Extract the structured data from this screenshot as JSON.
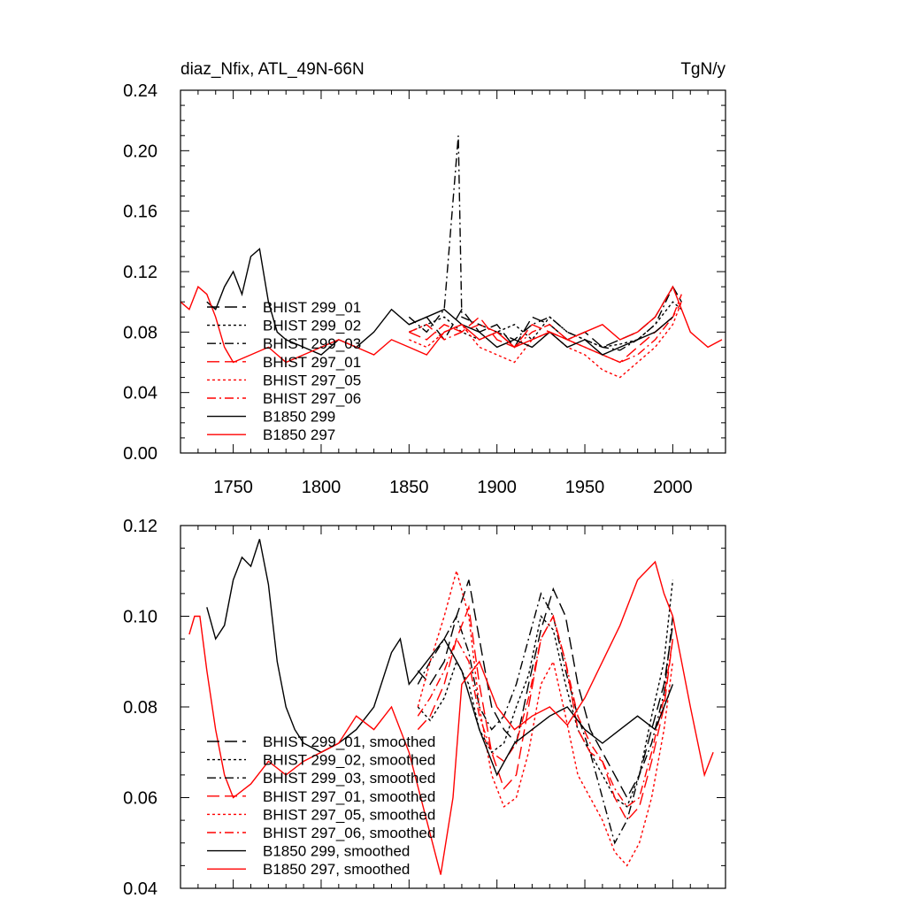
{
  "chart_data": [
    {
      "type": "line",
      "title": "diaz_Nfix, ATL_49N-66N",
      "units": "TgN/y",
      "xlim": [
        1720,
        2030
      ],
      "ylim": [
        0.0,
        0.24
      ],
      "xticks": [
        1750,
        1800,
        1850,
        1900,
        1950,
        2000
      ],
      "xtick_labels": [
        "1750",
        "1800",
        "1850",
        "1900",
        "1950",
        "2000"
      ],
      "yticks": [
        0.0,
        0.04,
        0.08,
        0.12,
        0.16,
        0.2,
        0.24
      ],
      "ytick_labels": [
        "0.00",
        "0.04",
        "0.08",
        "0.12",
        "0.16",
        "0.20",
        "0.24"
      ],
      "legend_position": "lower-left",
      "series": [
        {
          "name": "BHIST 299_01",
          "color": "#000000",
          "dash": "longdash",
          "x": [
            1850,
            1860,
            1870,
            1880,
            1890,
            1900,
            1910,
            1920,
            1930,
            1940,
            1950,
            1960,
            1970,
            1980,
            1990,
            2000,
            2005
          ],
          "y": [
            0.085,
            0.09,
            0.075,
            0.095,
            0.08,
            0.085,
            0.07,
            0.09,
            0.085,
            0.075,
            0.08,
            0.07,
            0.075,
            0.08,
            0.09,
            0.11,
            0.1
          ]
        },
        {
          "name": "BHIST 299_02",
          "color": "#000000",
          "dash": "dot",
          "x": [
            1850,
            1860,
            1870,
            1880,
            1890,
            1900,
            1910,
            1920,
            1930,
            1940,
            1950,
            1960,
            1970,
            1980,
            1990,
            2000,
            2005
          ],
          "y": [
            0.08,
            0.085,
            0.09,
            0.08,
            0.075,
            0.08,
            0.085,
            0.075,
            0.09,
            0.08,
            0.075,
            0.07,
            0.072,
            0.075,
            0.085,
            0.1,
            0.095
          ]
        },
        {
          "name": "BHIST 299_03",
          "color": "#000000",
          "dash": "dashdot",
          "x": [
            1850,
            1860,
            1870,
            1878,
            1880,
            1890,
            1900,
            1910,
            1920,
            1930,
            1940,
            1950,
            1960,
            1970,
            1980,
            1990,
            2000,
            2005
          ],
          "y": [
            0.09,
            0.08,
            0.095,
            0.21,
            0.09,
            0.085,
            0.08,
            0.075,
            0.085,
            0.09,
            0.08,
            0.075,
            0.07,
            0.068,
            0.075,
            0.085,
            0.11,
            0.1
          ]
        },
        {
          "name": "BHIST 297_01",
          "color": "#ff0000",
          "dash": "longdash",
          "x": [
            1850,
            1860,
            1870,
            1880,
            1890,
            1900,
            1910,
            1920,
            1930,
            1940,
            1950,
            1960,
            1970,
            1980,
            1990,
            2000,
            2005
          ],
          "y": [
            0.08,
            0.075,
            0.085,
            0.08,
            0.09,
            0.075,
            0.07,
            0.085,
            0.08,
            0.075,
            0.07,
            0.065,
            0.06,
            0.07,
            0.08,
            0.09,
            0.1
          ]
        },
        {
          "name": "BHIST 297_05",
          "color": "#ff0000",
          "dash": "dot",
          "x": [
            1850,
            1860,
            1870,
            1880,
            1890,
            1900,
            1910,
            1920,
            1930,
            1940,
            1950,
            1960,
            1970,
            1980,
            1990,
            2000,
            2005
          ],
          "y": [
            0.075,
            0.07,
            0.08,
            0.085,
            0.07,
            0.065,
            0.06,
            0.075,
            0.08,
            0.07,
            0.065,
            0.055,
            0.05,
            0.06,
            0.07,
            0.085,
            0.1
          ]
        },
        {
          "name": "BHIST 297_06",
          "color": "#ff0000",
          "dash": "dashdot",
          "x": [
            1850,
            1860,
            1870,
            1880,
            1890,
            1900,
            1910,
            1920,
            1930,
            1940,
            1950,
            1960,
            1970,
            1980,
            1990,
            2000,
            2005
          ],
          "y": [
            0.08,
            0.085,
            0.075,
            0.08,
            0.085,
            0.08,
            0.07,
            0.08,
            0.085,
            0.075,
            0.07,
            0.065,
            0.06,
            0.065,
            0.075,
            0.09,
            0.105
          ]
        },
        {
          "name": "B1850 299",
          "color": "#000000",
          "dash": "solid",
          "x": [
            1735,
            1740,
            1745,
            1750,
            1755,
            1760,
            1765,
            1770,
            1775,
            1780,
            1790,
            1800,
            1810,
            1820,
            1830,
            1840,
            1850,
            1860,
            1870,
            1880,
            1890,
            1900,
            1910,
            1920,
            1930,
            1940,
            1950,
            1960,
            1970,
            1980,
            1990,
            2000
          ],
          "y": [
            0.1,
            0.095,
            0.11,
            0.12,
            0.105,
            0.13,
            0.135,
            0.1,
            0.08,
            0.075,
            0.07,
            0.065,
            0.075,
            0.07,
            0.08,
            0.095,
            0.085,
            0.09,
            0.095,
            0.085,
            0.08,
            0.07,
            0.075,
            0.07,
            0.08,
            0.07,
            0.075,
            0.065,
            0.07,
            0.075,
            0.08,
            0.09
          ]
        },
        {
          "name": "B1850 297",
          "color": "#ff0000",
          "dash": "solid",
          "x": [
            1720,
            1725,
            1730,
            1735,
            1740,
            1745,
            1750,
            1760,
            1770,
            1780,
            1790,
            1800,
            1810,
            1820,
            1830,
            1840,
            1850,
            1860,
            1870,
            1880,
            1890,
            1900,
            1910,
            1920,
            1930,
            1940,
            1950,
            1960,
            1970,
            1980,
            1990,
            2000,
            2010,
            2020,
            2028
          ],
          "y": [
            0.1,
            0.095,
            0.11,
            0.105,
            0.09,
            0.07,
            0.06,
            0.065,
            0.07,
            0.06,
            0.065,
            0.07,
            0.075,
            0.07,
            0.065,
            0.075,
            0.07,
            0.065,
            0.08,
            0.085,
            0.075,
            0.08,
            0.07,
            0.075,
            0.08,
            0.075,
            0.08,
            0.085,
            0.075,
            0.08,
            0.09,
            0.11,
            0.08,
            0.07,
            0.075
          ]
        }
      ]
    },
    {
      "type": "line",
      "title": "",
      "xlim": [
        1720,
        2030
      ],
      "ylim": [
        0.04,
        0.12
      ],
      "xticks": [
        1750,
        1800,
        1850,
        1900,
        1950,
        2000
      ],
      "yticks": [
        0.04,
        0.06,
        0.08,
        0.1,
        0.12
      ],
      "ytick_labels": [
        "0.04",
        "0.06",
        "0.08",
        "0.10",
        "0.12"
      ],
      "legend_position": "lower-left",
      "series": [
        {
          "name": "BHIST 299_01, smoothed",
          "color": "#000000",
          "dash": "longdash",
          "x": [
            1855,
            1862,
            1870,
            1877,
            1884,
            1890,
            1897,
            1904,
            1911,
            1918,
            1925,
            1932,
            1939,
            1946,
            1953,
            1960,
            1967,
            1974,
            1981,
            1988,
            1995,
            2000
          ],
          "y": [
            0.088,
            0.085,
            0.09,
            0.1,
            0.108,
            0.095,
            0.08,
            0.075,
            0.072,
            0.085,
            0.097,
            0.106,
            0.1,
            0.085,
            0.075,
            0.07,
            0.065,
            0.06,
            0.065,
            0.075,
            0.085,
            0.098
          ]
        },
        {
          "name": "BHIST 299_02, smoothed",
          "color": "#000000",
          "dash": "dot",
          "x": [
            1855,
            1862,
            1870,
            1877,
            1884,
            1890,
            1897,
            1904,
            1911,
            1918,
            1925,
            1932,
            1939,
            1946,
            1953,
            1960,
            1967,
            1974,
            1981,
            1988,
            1995,
            2000
          ],
          "y": [
            0.08,
            0.077,
            0.082,
            0.09,
            0.085,
            0.075,
            0.07,
            0.072,
            0.08,
            0.087,
            0.1,
            0.097,
            0.085,
            0.075,
            0.07,
            0.065,
            0.06,
            0.058,
            0.065,
            0.078,
            0.09,
            0.108
          ]
        },
        {
          "name": "BHIST 299_03, smoothed",
          "color": "#000000",
          "dash": "dashdot",
          "x": [
            1855,
            1862,
            1870,
            1877,
            1884,
            1890,
            1897,
            1904,
            1911,
            1918,
            1925,
            1932,
            1939,
            1946,
            1953,
            1960,
            1967,
            1974,
            1981,
            1988,
            1995,
            2000
          ],
          "y": [
            0.085,
            0.09,
            0.095,
            0.1,
            0.092,
            0.08,
            0.075,
            0.078,
            0.085,
            0.095,
            0.105,
            0.1,
            0.088,
            0.078,
            0.07,
            0.06,
            0.05,
            0.055,
            0.065,
            0.072,
            0.083,
            0.1
          ]
        },
        {
          "name": "BHIST 297_01, smoothed",
          "color": "#ff0000",
          "dash": "longdash",
          "x": [
            1855,
            1862,
            1870,
            1877,
            1884,
            1890,
            1897,
            1904,
            1911,
            1918,
            1925,
            1932,
            1939,
            1946,
            1953,
            1960,
            1967,
            1974,
            1981,
            1988,
            1995,
            2000
          ],
          "y": [
            0.075,
            0.078,
            0.085,
            0.095,
            0.102,
            0.085,
            0.07,
            0.062,
            0.065,
            0.08,
            0.095,
            0.1,
            0.09,
            0.075,
            0.07,
            0.068,
            0.06,
            0.055,
            0.058,
            0.068,
            0.08,
            0.095
          ]
        },
        {
          "name": "BHIST 297_05, smoothed",
          "color": "#ff0000",
          "dash": "dot",
          "x": [
            1855,
            1862,
            1870,
            1877,
            1884,
            1890,
            1897,
            1904,
            1911,
            1918,
            1925,
            1932,
            1939,
            1946,
            1953,
            1960,
            1967,
            1974,
            1981,
            1988,
            1995,
            2000
          ],
          "y": [
            0.08,
            0.09,
            0.1,
            0.11,
            0.1,
            0.08,
            0.065,
            0.058,
            0.06,
            0.07,
            0.085,
            0.09,
            0.078,
            0.065,
            0.06,
            0.055,
            0.048,
            0.045,
            0.05,
            0.06,
            0.075,
            0.09
          ]
        },
        {
          "name": "BHIST 297_06, smoothed",
          "color": "#ff0000",
          "dash": "dashdot",
          "x": [
            1855,
            1862,
            1870,
            1877,
            1884,
            1890,
            1897,
            1904,
            1911,
            1918,
            1925,
            1932,
            1939,
            1946,
            1953,
            1960,
            1967,
            1974,
            1981,
            1988,
            1995,
            2000
          ],
          "y": [
            0.078,
            0.082,
            0.088,
            0.095,
            0.09,
            0.078,
            0.07,
            0.068,
            0.072,
            0.082,
            0.095,
            0.1,
            0.09,
            0.078,
            0.072,
            0.068,
            0.062,
            0.058,
            0.06,
            0.07,
            0.082,
            0.095
          ]
        },
        {
          "name": "B1850 299, smoothed",
          "color": "#000000",
          "dash": "solid",
          "x": [
            1735,
            1740,
            1745,
            1750,
            1755,
            1760,
            1765,
            1770,
            1775,
            1780,
            1785,
            1790,
            1800,
            1810,
            1820,
            1830,
            1840,
            1845,
            1850,
            1860,
            1870,
            1880,
            1890,
            1900,
            1910,
            1920,
            1930,
            1940,
            1950,
            1960,
            1970,
            1980,
            1990,
            2000
          ],
          "y": [
            0.102,
            0.095,
            0.098,
            0.108,
            0.113,
            0.111,
            0.117,
            0.107,
            0.09,
            0.08,
            0.075,
            0.072,
            0.07,
            0.072,
            0.075,
            0.08,
            0.092,
            0.095,
            0.085,
            0.09,
            0.095,
            0.088,
            0.075,
            0.065,
            0.072,
            0.075,
            0.078,
            0.08,
            0.075,
            0.072,
            0.075,
            0.078,
            0.075,
            0.085
          ]
        },
        {
          "name": "B1850 297, smoothed",
          "color": "#ff0000",
          "dash": "solid",
          "x": [
            1725,
            1728,
            1731,
            1735,
            1740,
            1745,
            1750,
            1760,
            1770,
            1780,
            1790,
            1800,
            1810,
            1820,
            1830,
            1840,
            1850,
            1860,
            1868,
            1875,
            1880,
            1890,
            1900,
            1910,
            1920,
            1930,
            1940,
            1950,
            1960,
            1970,
            1980,
            1990,
            1995,
            2000,
            2010,
            2018,
            2023
          ],
          "y": [
            0.096,
            0.1,
            0.1,
            0.088,
            0.075,
            0.065,
            0.06,
            0.063,
            0.068,
            0.065,
            0.068,
            0.07,
            0.072,
            0.078,
            0.075,
            0.08,
            0.07,
            0.055,
            0.043,
            0.06,
            0.085,
            0.09,
            0.08,
            0.075,
            0.078,
            0.08,
            0.076,
            0.082,
            0.09,
            0.098,
            0.108,
            0.112,
            0.105,
            0.1,
            0.08,
            0.065,
            0.07
          ]
        }
      ]
    }
  ]
}
